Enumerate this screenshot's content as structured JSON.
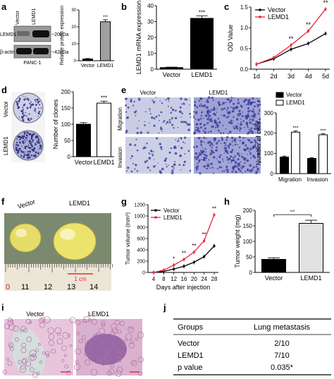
{
  "panels": {
    "a": {
      "letter": "a",
      "blot": {
        "lane_labels": [
          "Vector",
          "LEMD1"
        ],
        "row_labels": [
          "LEMD1",
          "β-actin"
        ],
        "size_labels": [
          "~20kDa",
          "~42kDa"
        ],
        "cell_line": "PANC-1"
      }
    },
    "b": {
      "letter": "b"
    },
    "c": {
      "letter": "c"
    },
    "d": {
      "letter": "d",
      "plate_labels": [
        "Vector",
        "LEMD1"
      ]
    },
    "e": {
      "letter": "e",
      "column_labels": [
        "Vector",
        "LEMD1"
      ],
      "row_labels": [
        "Migration",
        "Invasion"
      ]
    },
    "f": {
      "letter": "f",
      "labels": [
        "Vector",
        "LEMD1"
      ],
      "ruler_numbers": [
        "0",
        "11",
        "12",
        "13",
        "14"
      ],
      "scale_label": "1 cm"
    },
    "g": {
      "letter": "g"
    },
    "h": {
      "letter": "h",
      "significance_bracket": "***"
    },
    "i": {
      "letter": "i",
      "labels": [
        "Vector",
        "LEMD1"
      ]
    },
    "j": {
      "letter": "j",
      "header": [
        "Groups",
        "Lung metastasis"
      ],
      "rows": [
        [
          "Vector",
          "2/10"
        ],
        [
          "LEMD1",
          "7/10"
        ],
        [
          "p value",
          "0.035*"
        ]
      ]
    }
  },
  "chart_data": [
    {
      "panel": "a",
      "type": "bar",
      "categories": [
        "Vector",
        "LEMD1"
      ],
      "values": [
        1,
        23
      ],
      "errors": [
        0.3,
        1.2
      ],
      "ylabel": "Relative protein expression",
      "ylim": [
        0,
        30
      ],
      "yticks": [
        "0",
        "10",
        "20",
        "30"
      ],
      "significance": "***",
      "colors": [
        "#000000",
        "#a0a0a0"
      ]
    },
    {
      "panel": "b",
      "type": "bar",
      "categories": [
        "Vector",
        "LEMD1"
      ],
      "values": [
        1,
        32
      ],
      "errors": [
        0.3,
        1.5
      ],
      "ylabel": "LEMD1 mRNA expression",
      "ylim": [
        0,
        40
      ],
      "yticks": [
        "0",
        "10",
        "20",
        "30",
        "40"
      ],
      "significance": "***",
      "colors": [
        "#000000",
        "#000000"
      ]
    },
    {
      "panel": "c",
      "type": "line",
      "x": [
        "1d",
        "2d",
        "3d",
        "4d",
        "5d"
      ],
      "ylabel": "OD Value",
      "ylim": [
        0,
        1.5
      ],
      "yticks": [
        "0.0",
        "0.5",
        "1.0",
        "1.5"
      ],
      "series": [
        {
          "name": "Vector",
          "values": [
            0.12,
            0.25,
            0.48,
            0.62,
            0.86
          ],
          "color": "#000000"
        },
        {
          "name": "LEMD1",
          "values": [
            0.12,
            0.28,
            0.58,
            0.92,
            1.45
          ],
          "color": "#e8263a"
        }
      ],
      "annotations": [
        {
          "x": "3d",
          "text": "**"
        },
        {
          "x": "4d",
          "text": "**"
        },
        {
          "x": "5d",
          "text": "**"
        }
      ]
    },
    {
      "panel": "d",
      "type": "bar",
      "categories": [
        "Vector",
        "LEMD1"
      ],
      "values": [
        100,
        165
      ],
      "errors": [
        5,
        6
      ],
      "ylabel": "Number of clones",
      "ylim": [
        0,
        200
      ],
      "yticks": [
        "0",
        "50",
        "100",
        "150",
        "200"
      ],
      "significance": "***",
      "colors": [
        "#000000",
        "#ffffff"
      ]
    },
    {
      "panel": "e",
      "type": "bar",
      "categories": [
        "Migration",
        "Invasion"
      ],
      "ylabel": "Number of cells",
      "ylim": [
        0,
        300
      ],
      "yticks": [
        "0",
        "100",
        "200",
        "300"
      ],
      "series": [
        {
          "name": "Vector",
          "values": [
            82,
            75
          ],
          "errors": [
            5,
            4
          ],
          "color": "#000000"
        },
        {
          "name": "LEMD1",
          "values": [
            205,
            192
          ],
          "errors": [
            6,
            5
          ],
          "color": "#ffffff"
        }
      ],
      "significance": [
        "***",
        "***"
      ]
    },
    {
      "panel": "g",
      "type": "line",
      "x": [
        4,
        8,
        12,
        16,
        20,
        24,
        28
      ],
      "xlabel": "Days after injection",
      "ylabel": "Tumor volume (mm³)",
      "ylim": [
        0,
        1200
      ],
      "yticks": [
        "0",
        "200",
        "400",
        "600",
        "800",
        "1000",
        "1200"
      ],
      "xticks": [
        "4",
        "8",
        "12",
        "16",
        "20",
        "24",
        "28"
      ],
      "series": [
        {
          "name": "Vector",
          "values": [
            0,
            20,
            60,
            110,
            180,
            280,
            470
          ],
          "color": "#000000"
        },
        {
          "name": "LEMD1",
          "values": [
            0,
            40,
            130,
            230,
            360,
            560,
            1020
          ],
          "color": "#e8263a"
        }
      ],
      "annotations": [
        {
          "x": 12,
          "text": "*"
        },
        {
          "x": 16,
          "text": "**"
        },
        {
          "x": 20,
          "text": "**"
        },
        {
          "x": 24,
          "text": "**"
        },
        {
          "x": 28,
          "text": "**"
        }
      ]
    },
    {
      "panel": "h",
      "type": "bar",
      "categories": [
        "Vector",
        "LEMD1"
      ],
      "values": [
        42,
        158
      ],
      "errors": [
        5,
        10
      ],
      "ylabel": "Tumor weight (mg)",
      "ylim": [
        0,
        200
      ],
      "yticks": [
        "0",
        "50",
        "100",
        "150",
        "200"
      ],
      "colors": [
        "#000000",
        "#e2e2e2"
      ]
    }
  ]
}
